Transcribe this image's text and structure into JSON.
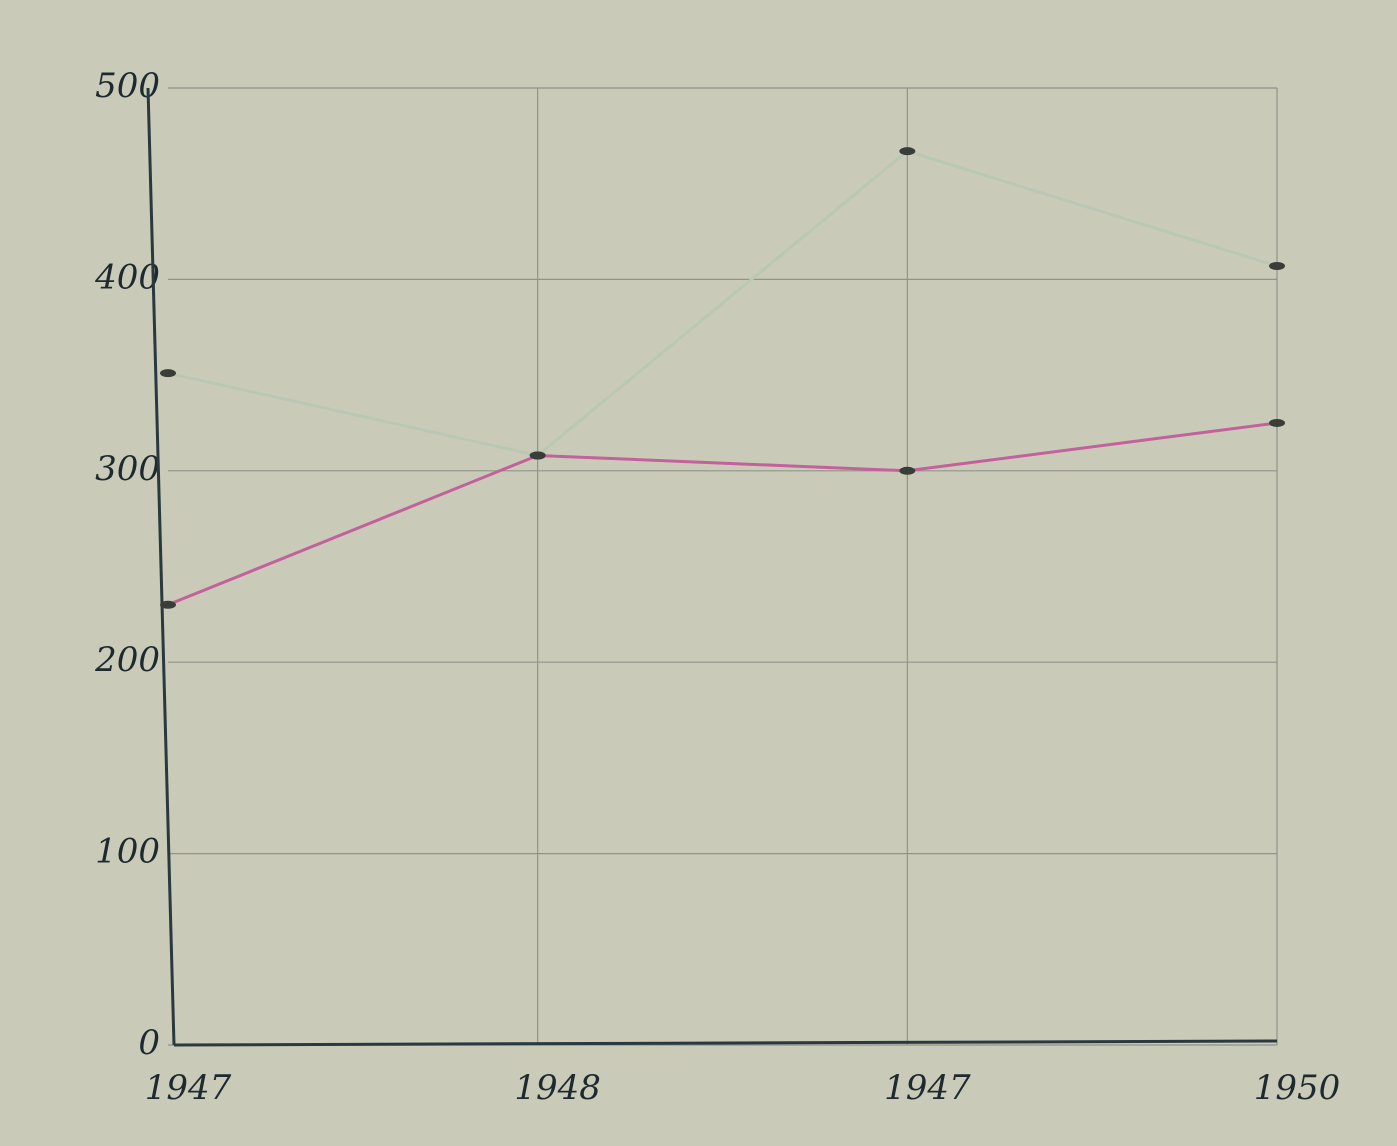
{
  "chart_data": {
    "type": "line",
    "categories": [
      "1947",
      "1948",
      "1947",
      "1950"
    ],
    "series": [
      {
        "color": "#b9c7b4",
        "values": [
          351,
          308,
          467,
          407
        ]
      },
      {
        "color": "#c2619c",
        "values": [
          230,
          308,
          300,
          325
        ]
      }
    ],
    "ylim": [
      0,
      500
    ],
    "yticks": [
      0,
      100,
      200,
      300,
      400,
      500
    ],
    "grid": true
  }
}
